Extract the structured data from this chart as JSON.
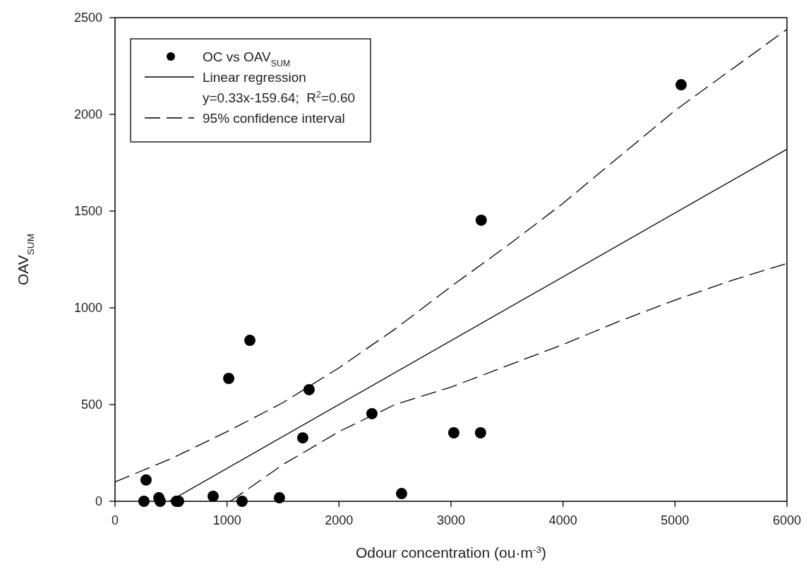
{
  "chart_data": {
    "type": "scatter",
    "xlabel": "Odour concentration (ou·m$^{-3}$)",
    "ylabel": "OAV$_{SUM}$",
    "xlim": [
      0,
      6000
    ],
    "xticks": [
      0,
      1000,
      2000,
      3000,
      4000,
      5000,
      6000
    ],
    "ylim": [
      0,
      2500
    ],
    "yticks": [
      0,
      500,
      1000,
      1500,
      2000,
      2500
    ],
    "grid": false,
    "legend": "top left",
    "annotations": [
      "y=0.33x-159.64;  R$^{2}$=0.60"
    ],
    "series": [
      {
        "name": "OC vs OAV$_{SUM}$",
        "color": "#000000",
        "marker": "circle",
        "x": [
          258,
          277,
          391,
          403,
          548,
          567,
          876,
          1015,
          1134,
          1204,
          1468,
          1676,
          1733,
          2294,
          2559,
          3025,
          3264,
          3270,
          5055
        ],
        "values": [
          0,
          110,
          18,
          0,
          0,
          0,
          26,
          635,
          0,
          832,
          18,
          328,
          577,
          453,
          40,
          354,
          354,
          1453,
          2153
        ]
      },
      {
        "type": "line",
        "name": "Linear regression",
        "color": "#000000",
        "marker": "none",
        "line_style": "solid",
        "x": [
          484,
          6000
        ],
        "values": [
          0,
          1820
        ]
      },
      {
        "type": "line",
        "name": "95% confidence interval",
        "color": "#000000",
        "marker": "none",
        "line_style": "dashed",
        "x": [
          0,
          500,
          1000,
          1500,
          2000,
          2500,
          3000,
          3500,
          4000,
          4500,
          5000,
          5500,
          6000
        ],
        "values": [
          100,
          220,
          360,
          510,
          690,
          890,
          1110,
          1320,
          1540,
          1780,
          2020,
          2230,
          2440
        ]
      },
      {
        "type": "line",
        "color": "#000000",
        "marker": "none",
        "line_style": "dashed",
        "x": [
          1030,
          1500,
          2000,
          2500,
          3000,
          3500,
          4000,
          4500,
          5000,
          5500,
          6000
        ],
        "values": [
          0,
          190,
          360,
          500,
          590,
          700,
          810,
          930,
          1040,
          1140,
          1230
        ]
      }
    ]
  }
}
